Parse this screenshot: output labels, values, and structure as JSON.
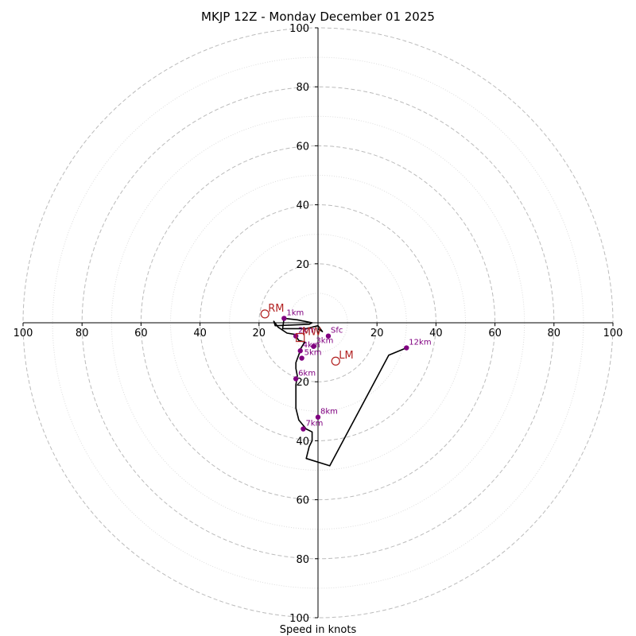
{
  "chart_data": {
    "type": "hodograph",
    "title": "MKJP 12Z - Monday December 01 2025",
    "xlabel": "Speed in knots",
    "units": "knots",
    "range": [
      -100,
      100
    ],
    "rings_major": [
      20,
      40,
      60,
      80,
      100
    ],
    "rings_minor": [
      10,
      30,
      50,
      70,
      90
    ],
    "tick_labels": {
      "up": [
        "20",
        "40",
        "60",
        "80",
        "100"
      ],
      "down": [
        "20",
        "40",
        "60",
        "80",
        "100"
      ],
      "left": [
        "20",
        "40",
        "60",
        "80",
        "100"
      ],
      "right": [
        "20",
        "40",
        "60",
        "80",
        "100"
      ]
    },
    "hodograph_trace": [
      [
        0,
        -2
      ],
      [
        1.5,
        -3
      ],
      [
        0,
        -1
      ],
      [
        -4,
        -2
      ],
      [
        -8,
        -2
      ],
      [
        -12,
        -2
      ],
      [
        -11.5,
        1.5
      ],
      [
        -7,
        1
      ],
      [
        -2,
        0
      ],
      [
        -3,
        -0.5
      ],
      [
        -14.5,
        -1
      ],
      [
        -15,
        0.5
      ],
      [
        -13.5,
        -1.5
      ],
      [
        -10.5,
        -3.5
      ],
      [
        -7.5,
        -4
      ],
      [
        -7.5,
        -4.5
      ],
      [
        -6.5,
        -6
      ],
      [
        -4.5,
        -6.5
      ],
      [
        -6,
        -9
      ],
      [
        -6,
        -9.5
      ],
      [
        -7.5,
        -13.5
      ],
      [
        -7.5,
        -15.5
      ],
      [
        -7,
        -18
      ],
      [
        -7.5,
        -21
      ],
      [
        -7.5,
        -26
      ],
      [
        -7.5,
        -29
      ],
      [
        -6.5,
        -33
      ],
      [
        -4,
        -36
      ],
      [
        -2,
        -37
      ],
      [
        -2,
        -40
      ],
      [
        -3,
        -42
      ],
      [
        -4,
        -46
      ],
      [
        4,
        -48.5
      ],
      [
        24,
        -11
      ],
      [
        30,
        -8.5
      ]
    ],
    "height_markers": [
      {
        "label": "Sfc",
        "u": 3.5,
        "v": -4.5
      },
      {
        "label": "1km",
        "u": -11.5,
        "v": 1.5
      },
      {
        "label": "2km",
        "u": -7.5,
        "v": -4.5
      },
      {
        "label": "3km",
        "u": -1.5,
        "v": -8
      },
      {
        "label": "4km",
        "u": -6,
        "v": -9.5
      },
      {
        "label": "5km",
        "u": -5.5,
        "v": -12
      },
      {
        "label": "6km",
        "u": -7.5,
        "v": -19
      },
      {
        "label": "7km",
        "u": -5,
        "v": -36
      },
      {
        "label": "8km",
        "u": 0,
        "v": -32
      },
      {
        "label": "12km",
        "u": 30,
        "v": -8.5
      }
    ],
    "storm_motions": [
      {
        "label": "RM",
        "u": -18,
        "v": 3
      },
      {
        "label": "LM",
        "u": 6,
        "v": -13
      },
      {
        "label": "MW",
        "u": -6,
        "v": -5
      }
    ],
    "colors": {
      "trace": "#000000",
      "markers": "#800080",
      "storm_motion": "#b22222",
      "major_ring": "#bbbbbb",
      "minor_ring": "#dddddd"
    }
  }
}
